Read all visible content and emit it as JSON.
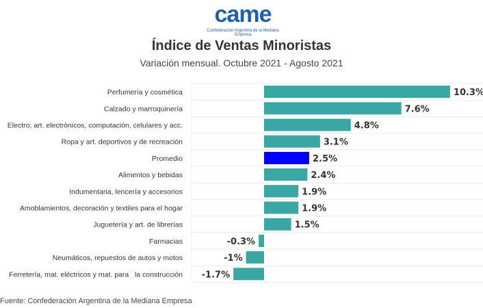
{
  "logo": {
    "word": "came",
    "subtitle": "Confederación Argentina de la Mediana Empresa"
  },
  "header": {
    "title": "Índice de Ventas Minoristas",
    "subtitle": "Variación mensual. Octubre 2021 - Agosto 2021"
  },
  "source": "Fuente: Confederación Argentina de la Mediana Empresa",
  "chart_data": {
    "type": "bar",
    "orientation": "horizontal",
    "title": "Índice de Ventas Minoristas",
    "subtitle": "Variación mensual. Octubre 2021 - Agosto 2021",
    "xlabel": "",
    "ylabel": "",
    "grid": true,
    "categories": [
      "Perfumería y cosmética",
      "Calzado y marroquinería",
      "Electro, art. electrónicos, computación, celulares y acc.",
      "Ropa y art. deportivos y de recreación",
      "Promedio",
      "Alimentos y bebidas",
      "Indumentaria, lencería y accesorios",
      "Amoblamientos, decoración y textiles para el hogar",
      "Juguetería y art. de librerías",
      "Farmacias",
      "Neumáticos, repuestos de autos y motos",
      "Ferretería, mat. eléctricos y mat. para   la construcción"
    ],
    "values": [
      10.3,
      7.6,
      4.8,
      3.1,
      2.5,
      2.4,
      1.9,
      1.9,
      1.5,
      -0.3,
      -1,
      -1.7
    ],
    "labels": [
      "10.3%",
      "7.6%",
      "4.8%",
      "3.1%",
      "2.5%",
      "2.4%",
      "1.9%",
      "1.9%",
      "1.5%",
      "-0.3%",
      "-1%",
      "-1.7%"
    ],
    "highlight": "Promedio",
    "colors": {
      "default": "#3aa7a5",
      "highlight": "#0000ff"
    },
    "xlim": [
      -1.7,
      10.3
    ]
  }
}
